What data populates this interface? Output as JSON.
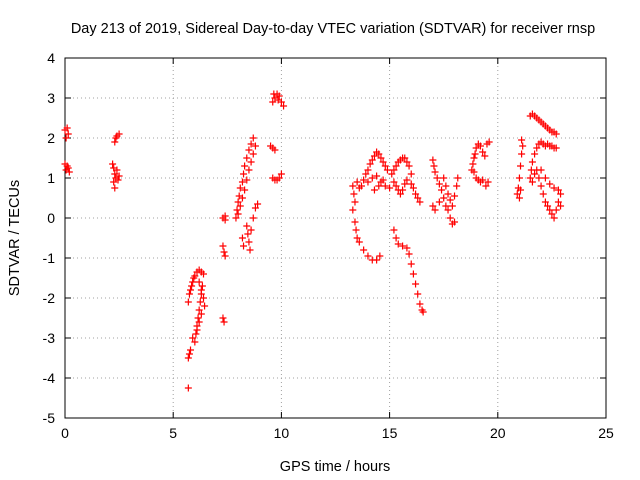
{
  "chart_data": {
    "type": "scatter",
    "title": "Day 213 of 2019, Sidereal Day-to-day VTEC variation (SDTVAR) for receiver rnsp",
    "xlabel": "GPS time / hours",
    "ylabel": "SDTVAR / TECUs",
    "xlim": [
      0,
      25
    ],
    "ylim": [
      -5,
      4
    ],
    "xticks": [
      0,
      5,
      10,
      15,
      20,
      25
    ],
    "yticks": [
      -5,
      -4,
      -3,
      -2,
      -1,
      0,
      1,
      2,
      3,
      4
    ],
    "grid": true,
    "marker": "+",
    "color": "#ff0000",
    "series": [
      {
        "name": "SDTVAR",
        "points": [
          [
            0.0,
            2.2
          ],
          [
            0.05,
            2.0
          ],
          [
            0.1,
            2.25
          ],
          [
            0.15,
            2.1
          ],
          [
            0.0,
            1.35
          ],
          [
            0.05,
            1.2
          ],
          [
            0.1,
            1.3
          ],
          [
            0.15,
            1.25
          ],
          [
            0.2,
            1.15
          ],
          [
            2.2,
            1.35
          ],
          [
            2.25,
            1.25
          ],
          [
            2.3,
            1.1
          ],
          [
            2.25,
            0.9
          ],
          [
            2.3,
            0.75
          ],
          [
            2.35,
            1.0
          ],
          [
            2.4,
            1.2
          ],
          [
            2.45,
            0.95
          ],
          [
            2.5,
            1.05
          ],
          [
            2.3,
            1.9
          ],
          [
            2.4,
            2.05
          ],
          [
            2.5,
            2.1
          ],
          [
            2.35,
            2.0
          ],
          [
            5.7,
            -4.25
          ],
          [
            5.7,
            -3.5
          ],
          [
            5.75,
            -3.4
          ],
          [
            5.8,
            -3.3
          ],
          [
            5.7,
            -2.1
          ],
          [
            5.75,
            -1.9
          ],
          [
            5.8,
            -1.8
          ],
          [
            5.85,
            -1.7
          ],
          [
            5.9,
            -1.6
          ],
          [
            5.95,
            -1.5
          ],
          [
            5.9,
            -3.0
          ],
          [
            6.0,
            -3.1
          ],
          [
            6.05,
            -2.9
          ],
          [
            6.1,
            -2.7
          ],
          [
            6.15,
            -2.5
          ],
          [
            6.2,
            -2.3
          ],
          [
            6.25,
            -2.1
          ],
          [
            6.3,
            -1.9
          ],
          [
            6.35,
            -1.7
          ],
          [
            6.0,
            -1.45
          ],
          [
            6.1,
            -1.35
          ],
          [
            6.2,
            -1.3
          ],
          [
            6.3,
            -1.35
          ],
          [
            6.4,
            -1.4
          ],
          [
            6.2,
            -1.6
          ],
          [
            6.3,
            -1.8
          ],
          [
            6.4,
            -2.0
          ],
          [
            6.45,
            -2.2
          ],
          [
            6.3,
            -2.4
          ],
          [
            6.2,
            -2.6
          ],
          [
            6.1,
            -2.8
          ],
          [
            7.3,
            -0.7
          ],
          [
            7.35,
            -0.85
          ],
          [
            7.4,
            -0.95
          ],
          [
            7.3,
            -2.5
          ],
          [
            7.35,
            -2.6
          ],
          [
            7.3,
            0.0
          ],
          [
            7.4,
            -0.05
          ],
          [
            7.4,
            0.05
          ],
          [
            7.9,
            0.0
          ],
          [
            7.95,
            0.2
          ],
          [
            8.0,
            0.4
          ],
          [
            8.05,
            0.55
          ],
          [
            8.1,
            0.75
          ],
          [
            8.2,
            0.9
          ],
          [
            8.25,
            1.1
          ],
          [
            8.3,
            1.3
          ],
          [
            8.4,
            1.5
          ],
          [
            8.5,
            1.7
          ],
          [
            8.6,
            1.85
          ],
          [
            8.7,
            2.0
          ],
          [
            8.0,
            0.1
          ],
          [
            8.1,
            0.3
          ],
          [
            8.2,
            0.5
          ],
          [
            8.3,
            0.7
          ],
          [
            8.4,
            0.95
          ],
          [
            8.5,
            1.2
          ],
          [
            8.6,
            1.4
          ],
          [
            8.7,
            1.6
          ],
          [
            8.8,
            1.8
          ],
          [
            8.4,
            -0.2
          ],
          [
            8.45,
            -0.4
          ],
          [
            8.5,
            -0.6
          ],
          [
            8.55,
            -0.8
          ],
          [
            8.6,
            -0.3
          ],
          [
            8.7,
            0.0
          ],
          [
            8.8,
            0.25
          ],
          [
            8.9,
            0.35
          ],
          [
            8.2,
            -0.5
          ],
          [
            8.25,
            -0.7
          ],
          [
            9.5,
            1.8
          ],
          [
            9.6,
            1.75
          ],
          [
            9.7,
            1.7
          ],
          [
            9.6,
            1.0
          ],
          [
            9.7,
            0.95
          ],
          [
            9.8,
            0.95
          ],
          [
            9.9,
            1.0
          ],
          [
            10.0,
            1.1
          ],
          [
            9.6,
            2.9
          ],
          [
            9.7,
            3.0
          ],
          [
            9.8,
            3.1
          ],
          [
            9.9,
            3.05
          ],
          [
            10.0,
            2.9
          ],
          [
            10.1,
            2.8
          ],
          [
            9.65,
            3.1
          ],
          [
            9.85,
            2.95
          ],
          [
            13.3,
            0.8
          ],
          [
            13.35,
            0.6
          ],
          [
            13.4,
            0.4
          ],
          [
            13.3,
            0.2
          ],
          [
            13.4,
            -0.1
          ],
          [
            13.45,
            -0.3
          ],
          [
            13.5,
            -0.5
          ],
          [
            13.6,
            -0.6
          ],
          [
            13.8,
            -0.8
          ],
          [
            14.0,
            -0.95
          ],
          [
            14.2,
            -1.05
          ],
          [
            14.4,
            -1.05
          ],
          [
            14.55,
            -0.95
          ],
          [
            13.5,
            0.9
          ],
          [
            13.6,
            0.75
          ],
          [
            13.7,
            0.8
          ],
          [
            13.8,
            0.95
          ],
          [
            13.9,
            1.1
          ],
          [
            14.0,
            1.2
          ],
          [
            14.1,
            1.35
          ],
          [
            14.2,
            1.45
          ],
          [
            14.3,
            1.55
          ],
          [
            14.4,
            1.65
          ],
          [
            14.5,
            1.6
          ],
          [
            14.6,
            1.5
          ],
          [
            14.7,
            1.4
          ],
          [
            14.8,
            1.3
          ],
          [
            14.9,
            1.2
          ],
          [
            14.0,
            0.9
          ],
          [
            14.2,
            1.0
          ],
          [
            14.4,
            1.05
          ],
          [
            14.6,
            0.9
          ],
          [
            14.8,
            0.8
          ],
          [
            15.0,
            0.75
          ],
          [
            14.3,
            0.7
          ],
          [
            14.5,
            0.8
          ],
          [
            14.7,
            0.95
          ],
          [
            15.1,
            1.1
          ],
          [
            15.2,
            1.2
          ],
          [
            15.3,
            1.3
          ],
          [
            15.4,
            1.4
          ],
          [
            15.5,
            1.45
          ],
          [
            15.6,
            1.5
          ],
          [
            15.7,
            1.5
          ],
          [
            15.8,
            1.4
          ],
          [
            15.9,
            1.3
          ],
          [
            16.0,
            1.1
          ],
          [
            15.2,
            0.9
          ],
          [
            15.3,
            0.8
          ],
          [
            15.4,
            0.7
          ],
          [
            15.5,
            0.6
          ],
          [
            15.6,
            0.7
          ],
          [
            15.7,
            0.85
          ],
          [
            15.8,
            0.95
          ],
          [
            16.0,
            0.85
          ],
          [
            16.1,
            0.75
          ],
          [
            16.2,
            0.6
          ],
          [
            16.3,
            0.5
          ],
          [
            16.4,
            0.4
          ],
          [
            15.2,
            -0.3
          ],
          [
            15.3,
            -0.5
          ],
          [
            15.4,
            -0.65
          ],
          [
            15.6,
            -0.7
          ],
          [
            15.8,
            -0.75
          ],
          [
            15.9,
            -0.9
          ],
          [
            16.0,
            -1.15
          ],
          [
            16.1,
            -1.4
          ],
          [
            16.2,
            -1.65
          ],
          [
            16.3,
            -1.9
          ],
          [
            16.4,
            -2.15
          ],
          [
            16.5,
            -2.3
          ],
          [
            16.55,
            -2.35
          ],
          [
            17.0,
            1.45
          ],
          [
            17.05,
            1.3
          ],
          [
            17.1,
            1.15
          ],
          [
            17.2,
            1.0
          ],
          [
            17.3,
            0.85
          ],
          [
            17.4,
            0.7
          ],
          [
            17.5,
            0.5
          ],
          [
            17.6,
            0.3
          ],
          [
            17.7,
            0.2
          ],
          [
            17.8,
            0.0
          ],
          [
            17.9,
            -0.15
          ],
          [
            18.0,
            -0.1
          ],
          [
            17.5,
            1.0
          ],
          [
            17.6,
            0.8
          ],
          [
            17.7,
            0.6
          ],
          [
            17.8,
            0.45
          ],
          [
            17.9,
            0.3
          ],
          [
            18.0,
            0.55
          ],
          [
            18.1,
            0.8
          ],
          [
            18.15,
            1.0
          ],
          [
            17.0,
            0.3
          ],
          [
            17.1,
            0.2
          ],
          [
            17.3,
            0.4
          ],
          [
            18.8,
            1.2
          ],
          [
            18.85,
            1.35
          ],
          [
            18.9,
            1.5
          ],
          [
            18.95,
            1.6
          ],
          [
            19.0,
            1.75
          ],
          [
            19.1,
            1.85
          ],
          [
            19.2,
            1.8
          ],
          [
            19.3,
            1.65
          ],
          [
            19.4,
            1.55
          ],
          [
            18.9,
            1.15
          ],
          [
            19.0,
            1.0
          ],
          [
            19.1,
            0.95
          ],
          [
            19.2,
            0.9
          ],
          [
            19.3,
            0.95
          ],
          [
            19.45,
            0.8
          ],
          [
            19.55,
            0.9
          ],
          [
            19.5,
            1.85
          ],
          [
            19.6,
            1.9
          ],
          [
            20.9,
            0.6
          ],
          [
            20.95,
            0.75
          ],
          [
            21.0,
            1.0
          ],
          [
            21.05,
            1.3
          ],
          [
            21.1,
            1.6
          ],
          [
            21.15,
            1.8
          ],
          [
            21.1,
            1.95
          ],
          [
            21.0,
            0.5
          ],
          [
            21.05,
            0.7
          ],
          [
            21.5,
            2.55
          ],
          [
            21.6,
            2.6
          ],
          [
            21.7,
            2.55
          ],
          [
            21.8,
            2.5
          ],
          [
            21.9,
            2.45
          ],
          [
            22.0,
            2.4
          ],
          [
            22.1,
            2.35
          ],
          [
            22.2,
            2.3
          ],
          [
            22.3,
            2.25
          ],
          [
            22.4,
            2.2
          ],
          [
            22.5,
            2.15
          ],
          [
            22.6,
            2.15
          ],
          [
            22.7,
            2.1
          ],
          [
            21.5,
            1.0
          ],
          [
            21.55,
            1.2
          ],
          [
            21.6,
            1.4
          ],
          [
            21.7,
            1.6
          ],
          [
            21.8,
            1.75
          ],
          [
            21.9,
            1.85
          ],
          [
            22.0,
            1.9
          ],
          [
            22.1,
            1.85
          ],
          [
            22.2,
            1.8
          ],
          [
            22.3,
            1.85
          ],
          [
            22.4,
            1.8
          ],
          [
            22.5,
            1.8
          ],
          [
            22.6,
            1.75
          ],
          [
            22.7,
            1.75
          ],
          [
            21.6,
            0.9
          ],
          [
            21.7,
            1.1
          ],
          [
            21.8,
            1.2
          ],
          [
            21.9,
            1.0
          ],
          [
            22.0,
            0.8
          ],
          [
            22.1,
            0.6
          ],
          [
            22.2,
            0.4
          ],
          [
            22.3,
            0.3
          ],
          [
            22.4,
            0.2
          ],
          [
            22.5,
            0.1
          ],
          [
            22.6,
            0.0
          ],
          [
            22.7,
            0.2
          ],
          [
            22.8,
            0.4
          ],
          [
            22.9,
            0.6
          ],
          [
            22.0,
            1.2
          ],
          [
            22.2,
            1.0
          ],
          [
            22.4,
            0.85
          ],
          [
            22.6,
            0.75
          ],
          [
            22.8,
            0.7
          ],
          [
            22.9,
            0.3
          ]
        ]
      }
    ]
  }
}
